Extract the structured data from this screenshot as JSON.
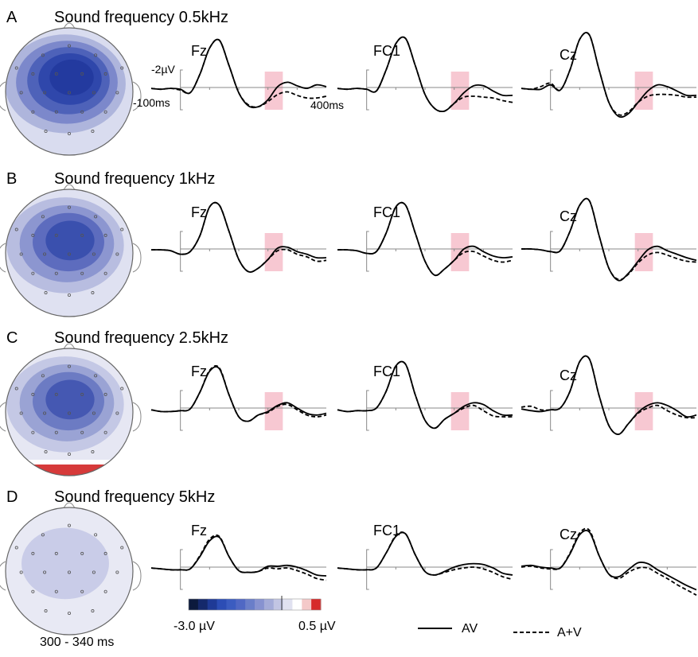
{
  "footer": {
    "time_window": "300 - 340 ms"
  },
  "colorbar": {
    "min_label": "-3.0 µV",
    "max_label": "0.5 µV",
    "colors": [
      "#0c1a3d",
      "#15296b",
      "#1f3a96",
      "#2c4db5",
      "#3b5cc0",
      "#5068c4",
      "#6a7ec9",
      "#8792d0",
      "#a4abd8",
      "#c2c5e3",
      "#e0e1f0",
      "#ffffff",
      "#f4c9c9",
      "#d62a2a"
    ]
  },
  "legend": {
    "solid": "AV",
    "dashed": "A+V"
  },
  "scale": {
    "amplitude": "-2µV",
    "time_start": "-100ms",
    "time_end": "400ms"
  },
  "highlight_color": "#f7c8d2",
  "panels": [
    {
      "letter": "A",
      "title": "Sound frequency 0.5kHz",
      "highlight": true,
      "map": {
        "background": "#d9dcef",
        "contours": [
          "#aeb5dc",
          "#7c88cb",
          "#4e62b9",
          "#2f47ab",
          "#233a9f"
        ]
      }
    },
    {
      "letter": "B",
      "title": "Sound frequency 1kHz",
      "highlight": true,
      "map": {
        "background": "#dfe1f1",
        "contours": [
          "#b8bde0",
          "#8c96d0",
          "#5d6cbe",
          "#3a50ae"
        ]
      }
    },
    {
      "letter": "C",
      "title": "Sound frequency 2.5kHz",
      "highlight": true,
      "map": {
        "background": "#e6e7f3",
        "contours": [
          "#c4c8e5",
          "#9aa3d4",
          "#6c7bc3",
          "#4558b2"
        ],
        "red_strip": "#d63a3a"
      }
    },
    {
      "letter": "D",
      "title": "Sound frequency 5kHz",
      "highlight": false,
      "map": {
        "background": "#e8e9f4",
        "contours": [
          "#c9cce8"
        ]
      }
    }
  ],
  "chart_data": {
    "type": "line",
    "x_unit": "ms",
    "y_unit": "µV",
    "y_axis_inverted": "negative up",
    "xlim": [
      -100,
      500
    ],
    "highlight_window_ms": [
      300,
      340
    ],
    "electrodes": [
      "Fz",
      "FC1",
      "Cz"
    ],
    "series_names": [
      "AV",
      "A+V"
    ],
    "rows": [
      {
        "panel": "A",
        "Fz": {
          "AV": [
            0.1,
            0.2,
            0.1,
            0.2,
            0.6,
            -1.5,
            -4.5,
            -5.4,
            -2.5,
            0.6,
            2.1,
            2.2,
            1.4,
            -0.1,
            -0.6,
            -0.2,
            0.1,
            -0.3,
            -0.1
          ],
          "A+V": [
            0.1,
            0.2,
            0.1,
            0.3,
            0.6,
            -1.5,
            -4.5,
            -5.4,
            -2.5,
            0.6,
            2.0,
            2.2,
            1.6,
            0.8,
            0.5,
            0.9,
            1.2,
            1.2,
            1.0
          ]
        },
        "FC1": {
          "AV": [
            0.1,
            0.2,
            0.1,
            0.2,
            0.4,
            -2.0,
            -5.0,
            -5.6,
            -2.5,
            0.8,
            2.4,
            2.7,
            1.8,
            0.6,
            -0.2,
            -0.2,
            0.4,
            0.9,
            0.9
          ],
          "A+V": [
            0.1,
            0.2,
            0.1,
            0.2,
            0.4,
            -2.0,
            -5.0,
            -5.6,
            -2.5,
            0.8,
            2.4,
            2.7,
            1.8,
            1.1,
            1.0,
            1.1,
            1.2,
            1.5,
            1.7
          ]
        },
        "Cz": {
          "AV": [
            0.1,
            0.2,
            0.2,
            -0.3,
            0.3,
            -2.0,
            -5.5,
            -6.0,
            -2.0,
            1.7,
            3.3,
            3.0,
            1.7,
            0.4,
            -0.3,
            -0.1,
            0.4,
            0.9,
            0.9
          ],
          "A+V": [
            0.1,
            0.2,
            -0.1,
            -0.5,
            0.3,
            -2.0,
            -5.5,
            -6.0,
            -2.0,
            1.7,
            3.1,
            2.8,
            1.7,
            1.0,
            0.8,
            0.8,
            0.9,
            1.1,
            1.1
          ]
        }
      },
      {
        "panel": "B",
        "Fz": {
          "AV": [
            0.1,
            0.1,
            0.2,
            0.6,
            0.3,
            -1.5,
            -4.8,
            -5.0,
            -2.0,
            1.2,
            2.6,
            2.2,
            1.2,
            -0.1,
            -0.2,
            0.3,
            0.6,
            1.0,
            1.0
          ],
          "A+V": [
            0.1,
            0.1,
            0.2,
            0.6,
            0.3,
            -1.5,
            -4.8,
            -5.0,
            -2.0,
            1.2,
            2.6,
            2.2,
            1.2,
            0.2,
            0.1,
            0.6,
            0.9,
            1.4,
            1.3
          ]
        },
        "FC1": {
          "AV": [
            0.1,
            0.1,
            0.2,
            0.5,
            0.3,
            -1.8,
            -4.8,
            -5.0,
            -1.8,
            1.4,
            3.0,
            2.3,
            1.3,
            0.0,
            -0.3,
            0.3,
            0.8,
            1.0,
            0.9
          ],
          "A+V": [
            0.1,
            0.1,
            0.2,
            0.5,
            0.3,
            -1.8,
            -4.8,
            -5.0,
            -1.8,
            1.4,
            3.0,
            2.3,
            1.3,
            0.4,
            0.3,
            0.8,
            1.3,
            1.5,
            1.3
          ]
        },
        "Cz": {
          "AV": [
            0.0,
            0.0,
            0.1,
            0.3,
            0.2,
            -2.0,
            -5.0,
            -5.5,
            -1.5,
            2.2,
            3.6,
            2.8,
            1.4,
            0.1,
            -0.3,
            0.2,
            0.6,
            1.0,
            1.3
          ],
          "A+V": [
            0.0,
            0.0,
            0.1,
            0.3,
            0.2,
            -2.0,
            -5.0,
            -5.5,
            -1.5,
            2.2,
            3.5,
            2.9,
            1.6,
            0.7,
            0.4,
            0.7,
            1.1,
            1.4,
            1.5
          ]
        }
      },
      {
        "panel": "C",
        "Fz": {
          "AV": [
            0.2,
            0.4,
            0.4,
            0.3,
            0.1,
            -1.8,
            -4.2,
            -4.5,
            -1.5,
            1.0,
            1.5,
            0.8,
            0.4,
            -0.3,
            -0.6,
            0.0,
            0.6,
            0.8,
            0.6
          ],
          "A+V": [
            0.2,
            0.4,
            0.4,
            0.3,
            0.1,
            -1.8,
            -4.3,
            -4.6,
            -1.5,
            1.0,
            1.5,
            0.8,
            0.5,
            -0.2,
            -0.4,
            0.2,
            0.8,
            1.0,
            0.8
          ]
        },
        "FC1": {
          "AV": [
            0.2,
            0.4,
            0.3,
            0.3,
            0.0,
            -1.9,
            -4.8,
            -5.0,
            -1.5,
            1.4,
            2.3,
            1.3,
            0.6,
            -0.2,
            -0.6,
            -0.4,
            0.3,
            0.8,
            0.8
          ],
          "A+V": [
            0.2,
            0.4,
            0.3,
            0.3,
            0.0,
            -1.9,
            -4.8,
            -5.0,
            -1.5,
            1.4,
            2.3,
            1.3,
            0.6,
            0.0,
            -0.3,
            0.3,
            0.9,
            1.0,
            1.0
          ]
        },
        "Cz": {
          "AV": [
            0.1,
            0.3,
            0.4,
            0.2,
            0.0,
            -1.9,
            -5.3,
            -5.6,
            -1.4,
            2.0,
            3.0,
            1.8,
            0.5,
            -0.3,
            -0.6,
            -0.3,
            0.3,
            1.0,
            0.8
          ],
          "A+V": [
            -0.1,
            -0.2,
            0.2,
            0.2,
            0.0,
            -1.9,
            -5.3,
            -5.6,
            -1.4,
            2.0,
            3.0,
            1.8,
            0.6,
            0.0,
            -0.3,
            0.3,
            0.8,
            1.1,
            1.1
          ]
        }
      },
      {
        "panel": "D",
        "Fz": {
          "AV": [
            0.1,
            0.2,
            0.3,
            0.3,
            0.2,
            -1.2,
            -3.0,
            -3.4,
            -1.2,
            0.4,
            0.6,
            0.5,
            -0.1,
            -0.1,
            -0.2,
            0.0,
            0.4,
            0.9,
            1.0
          ],
          "A+V": [
            0.1,
            0.2,
            0.3,
            0.3,
            0.2,
            -1.3,
            -3.2,
            -3.5,
            -1.2,
            0.4,
            0.6,
            0.5,
            0.1,
            0.2,
            0.1,
            0.4,
            0.8,
            1.3,
            1.5
          ]
        },
        "FC1": {
          "AV": [
            0.1,
            0.2,
            0.3,
            0.3,
            0.1,
            -1.6,
            -3.5,
            -3.8,
            -1.4,
            0.5,
            0.9,
            0.5,
            0.0,
            -0.3,
            -0.4,
            -0.3,
            0.1,
            0.7,
            0.9
          ],
          "A+V": [
            0.1,
            0.2,
            0.3,
            0.3,
            0.1,
            -1.6,
            -3.6,
            -3.8,
            -1.4,
            0.5,
            0.9,
            0.6,
            0.3,
            0.1,
            0.0,
            0.2,
            0.6,
            1.1,
            1.4
          ]
        },
        "Cz": {
          "AV": [
            -0.1,
            -0.2,
            0.0,
            0.1,
            0.1,
            -1.5,
            -3.7,
            -4.0,
            -1.3,
            0.8,
            1.1,
            0.3,
            -0.5,
            -0.4,
            0.3,
            0.9,
            1.5,
            2.1,
            2.6
          ],
          "A+V": [
            0.0,
            -0.1,
            0.1,
            0.2,
            0.1,
            -1.6,
            -3.9,
            -4.2,
            -1.3,
            0.8,
            1.3,
            0.6,
            0.1,
            0.1,
            0.7,
            1.3,
            2.0,
            2.6,
            3.2
          ]
        }
      }
    ]
  }
}
